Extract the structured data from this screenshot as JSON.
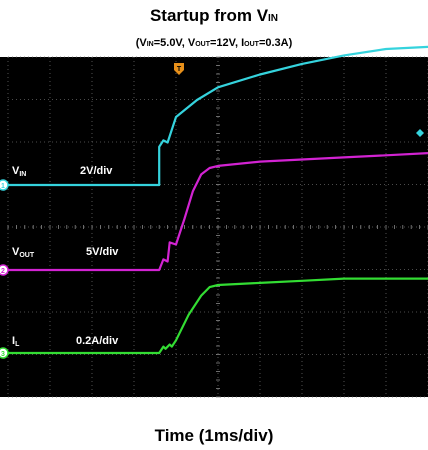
{
  "chart_data": {
    "type": "line",
    "title_main": "Startup from V",
    "title_sub_index": "IN",
    "conditions": {
      "open": "(V",
      "vin_sub": "IN",
      "vin_val": "=5.0V, V",
      "vout_sub": "OUT",
      "vout_val": "=12V, I",
      "iout_sub": "OUT",
      "iout_val": "=0.3A)"
    },
    "xlabel": "Time (1ms/div)",
    "grid": true,
    "divisions": {
      "x": 10,
      "y": 8
    },
    "trigger_marker": "T",
    "series": [
      {
        "name_main": "V",
        "name_sub": "IN",
        "scale": "2V/div",
        "color": "#35d3dd",
        "ground_marker": "1",
        "y_unit": "div",
        "x": [
          0,
          3.6,
          3.6,
          3.7,
          3.8,
          4.0,
          4.5,
          5.0,
          6.0,
          7.0,
          8.0,
          9.0,
          10.0
        ],
        "y": [
          0,
          0,
          0.9,
          1.05,
          1.0,
          1.6,
          2.0,
          2.3,
          2.6,
          2.85,
          3.05,
          3.2,
          3.25
        ]
      },
      {
        "name_main": "V",
        "name_sub": "OUT",
        "scale": "5V/div",
        "color": "#d223d2",
        "ground_marker": "2",
        "y_unit": "div",
        "x": [
          0,
          3.6,
          3.7,
          3.8,
          3.85,
          4.0,
          4.2,
          4.4,
          4.6,
          4.8,
          5.0,
          6.0,
          7.0,
          8.0,
          9.0,
          10.0
        ],
        "y": [
          0,
          0,
          0.25,
          0.2,
          0.65,
          0.6,
          1.2,
          1.85,
          2.25,
          2.4,
          2.45,
          2.55,
          2.6,
          2.65,
          2.7,
          2.75
        ]
      },
      {
        "name_main": "I",
        "name_sub": "L",
        "scale": "0.2A/div",
        "color": "#33dd33",
        "ground_marker": "3",
        "y_unit": "div",
        "x": [
          0,
          3.6,
          3.7,
          3.75,
          3.85,
          3.9,
          4.0,
          4.3,
          4.6,
          4.8,
          5.0,
          6.0,
          7.0,
          8.0,
          9.0,
          10.0
        ],
        "y": [
          0,
          0,
          0.15,
          0.1,
          0.2,
          0.15,
          0.3,
          0.9,
          1.35,
          1.55,
          1.6,
          1.65,
          1.7,
          1.75,
          1.75,
          1.75
        ]
      }
    ]
  }
}
